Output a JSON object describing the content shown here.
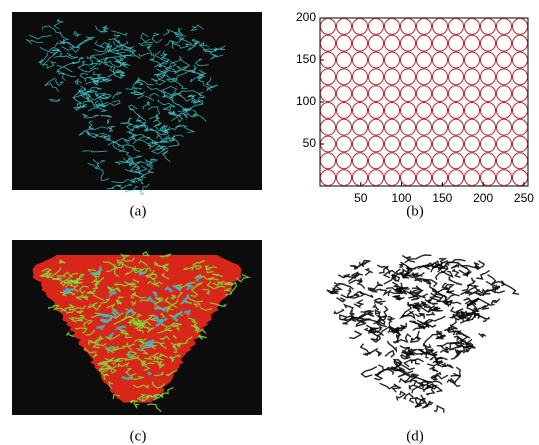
{
  "panels": [
    {
      "caption": "(a)"
    },
    {
      "caption": "(b)",
      "xlim": [
        0,
        255
      ],
      "ylim": [
        0,
        200
      ],
      "xticks": [
        50,
        100,
        150,
        200,
        250
      ],
      "yticks": [
        50,
        100,
        150,
        200
      ]
    },
    {
      "caption": "(c)"
    },
    {
      "caption": "(d)"
    }
  ]
}
